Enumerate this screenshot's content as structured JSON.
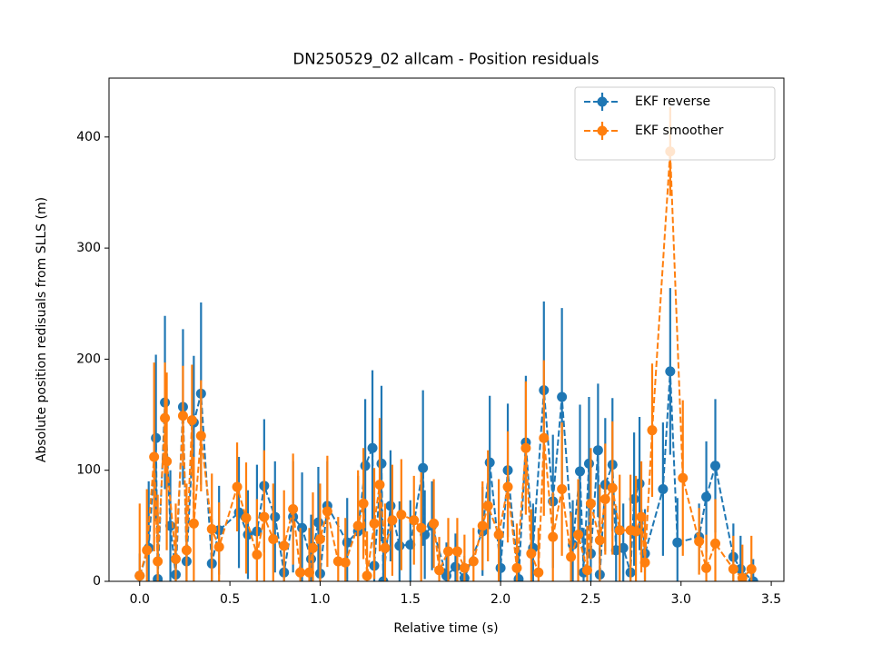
{
  "chart_data": {
    "type": "errorbar",
    "title": "DN250529_02 allcam - Position residuals",
    "xlabel": "Relative time (s)",
    "ylabel": "Absolute position redisuals from SLLS (m)",
    "xlim": [
      -0.17,
      3.57
    ],
    "ylim": [
      0,
      453
    ],
    "xticks": [
      {
        "value": 0,
        "label": "0.0"
      },
      0.5,
      {
        "value": 1,
        "label": "1.0"
      },
      1.5,
      {
        "value": 2,
        "label": "2.0"
      },
      2.5,
      {
        "value": 3,
        "label": "3.0"
      },
      3.5
    ],
    "yticks": [
      0,
      100,
      200,
      300,
      400
    ],
    "legend": "upper right",
    "linestyle": "dashed",
    "series": [
      {
        "name": "EKF reverse",
        "color": "#1f77b4",
        "x": [
          0.0,
          0.05,
          0.09,
          0.1,
          0.14,
          0.17,
          0.2,
          0.24,
          0.26,
          0.3,
          0.34,
          0.4,
          0.44,
          0.55,
          0.6,
          0.65,
          0.69,
          0.75,
          0.8,
          0.85,
          0.9,
          0.95,
          0.99,
          1.0,
          1.04,
          1.15,
          1.21,
          1.25,
          1.29,
          1.3,
          1.34,
          1.35,
          1.39,
          1.44,
          1.5,
          1.57,
          1.58,
          1.62,
          1.7,
          1.75,
          1.8,
          1.9,
          1.94,
          2.0,
          2.04,
          2.1,
          2.14,
          2.18,
          2.24,
          2.29,
          2.34,
          2.4,
          2.44,
          2.46,
          2.49,
          2.5,
          2.54,
          2.55,
          2.58,
          2.62,
          2.64,
          2.68,
          2.72,
          2.74,
          2.77,
          2.8,
          2.9,
          2.94,
          2.98,
          3.1,
          3.14,
          3.19,
          3.29,
          3.33,
          3.4
        ],
        "values": [
          5,
          30,
          129,
          2,
          161,
          50,
          6,
          157,
          18,
          143,
          169,
          16,
          46,
          62,
          42,
          45,
          86,
          58,
          8,
          58,
          48,
          20,
          53,
          7,
          68,
          35,
          45,
          104,
          120,
          14,
          106,
          0,
          68,
          32,
          33,
          102,
          42,
          50,
          5,
          13,
          3,
          45,
          107,
          12,
          100,
          2,
          125,
          30,
          172,
          72,
          166,
          33,
          99,
          8,
          106,
          25,
          118,
          6,
          87,
          105,
          28,
          30,
          8,
          74,
          88,
          25,
          83,
          189,
          35,
          40,
          76,
          104,
          22,
          11,
          0
        ],
        "errors": [
          20,
          60,
          75,
          60,
          78,
          50,
          40,
          70,
          50,
          60,
          82,
          40,
          40,
          50,
          40,
          60,
          60,
          50,
          30,
          50,
          50,
          40,
          50,
          30,
          40,
          40,
          50,
          60,
          70,
          40,
          70,
          40,
          50,
          40,
          40,
          70,
          40,
          40,
          30,
          30,
          20,
          40,
          60,
          30,
          60,
          30,
          60,
          40,
          80,
          60,
          80,
          40,
          60,
          40,
          60,
          40,
          60,
          40,
          60,
          60,
          40,
          40,
          40,
          60,
          60,
          40,
          60,
          75,
          40,
          30,
          50,
          60,
          30,
          30,
          20
        ]
      },
      {
        "name": "EKF smoother",
        "color": "#ff7f0e",
        "x": [
          0.0,
          0.04,
          0.08,
          0.1,
          0.14,
          0.15,
          0.2,
          0.24,
          0.26,
          0.29,
          0.3,
          0.34,
          0.4,
          0.44,
          0.54,
          0.59,
          0.65,
          0.69,
          0.74,
          0.8,
          0.85,
          0.89,
          0.94,
          0.96,
          1.0,
          1.04,
          1.1,
          1.14,
          1.21,
          1.24,
          1.26,
          1.3,
          1.33,
          1.36,
          1.4,
          1.45,
          1.52,
          1.56,
          1.63,
          1.66,
          1.71,
          1.76,
          1.8,
          1.85,
          1.9,
          1.93,
          1.99,
          2.04,
          2.09,
          2.14,
          2.17,
          2.21,
          2.24,
          2.29,
          2.34,
          2.39,
          2.43,
          2.48,
          2.5,
          2.55,
          2.58,
          2.62,
          2.66,
          2.72,
          2.75,
          2.78,
          2.8,
          2.84,
          2.94,
          3.01,
          3.1,
          3.14,
          3.19,
          3.29,
          3.34,
          3.39
        ],
        "values": [
          5,
          28,
          112,
          18,
          147,
          108,
          20,
          149,
          28,
          145,
          52,
          131,
          47,
          31,
          85,
          57,
          24,
          58,
          38,
          32,
          65,
          8,
          8,
          30,
          38,
          63,
          18,
          17,
          50,
          70,
          5,
          52,
          87,
          30,
          55,
          60,
          55,
          48,
          52,
          10,
          27,
          27,
          12,
          18,
          50,
          68,
          42,
          85,
          12,
          120,
          25,
          8,
          129,
          40,
          83,
          22,
          42,
          10,
          70,
          37,
          74,
          84,
          46,
          46,
          45,
          58,
          17,
          136,
          387,
          93,
          36,
          12,
          34,
          11,
          3,
          11
        ],
        "errors": [
          65,
          55,
          85,
          60,
          50,
          80,
          50,
          45,
          60,
          50,
          60,
          50,
          50,
          40,
          40,
          50,
          50,
          60,
          50,
          50,
          50,
          40,
          40,
          50,
          50,
          50,
          40,
          40,
          50,
          50,
          40,
          50,
          60,
          40,
          50,
          50,
          40,
          50,
          40,
          30,
          30,
          30,
          30,
          30,
          40,
          50,
          50,
          50,
          40,
          60,
          40,
          40,
          70,
          40,
          60,
          40,
          50,
          40,
          50,
          50,
          50,
          60,
          50,
          50,
          50,
          50,
          40,
          60,
          40,
          70,
          30,
          30,
          40,
          30,
          30,
          30
        ]
      }
    ]
  }
}
